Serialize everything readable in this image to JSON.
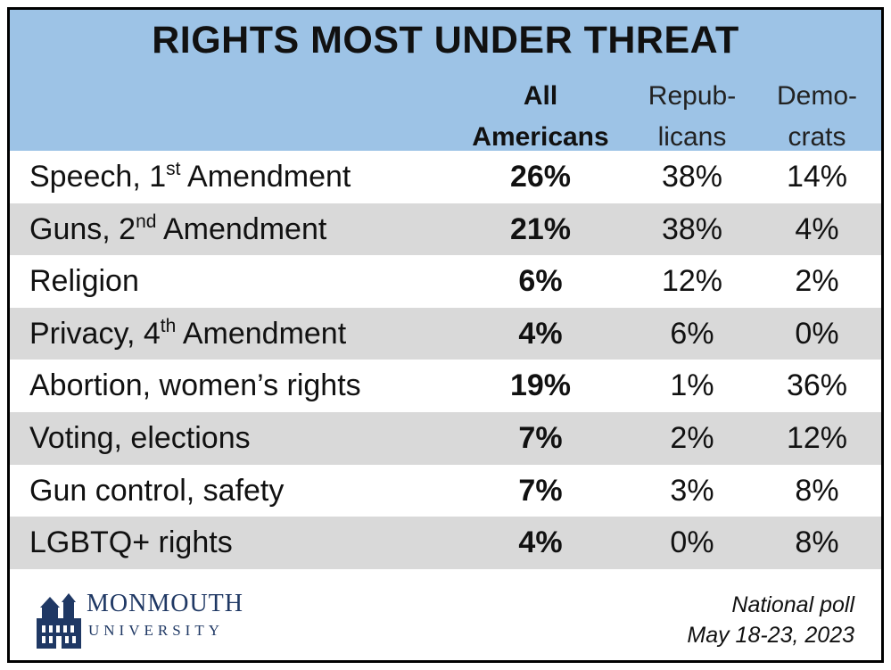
{
  "chart_data": {
    "type": "table",
    "title": "RIGHTS MOST UNDER THREAT",
    "columns": [
      {
        "line1": "All",
        "line2": "Americans"
      },
      {
        "line1": "Repub-",
        "line2": "licans"
      },
      {
        "line1": "Demo-",
        "line2": "crats"
      }
    ],
    "rows": [
      {
        "label_main": "Speech, 1",
        "label_sup": "st",
        "label_rest": " Amendment",
        "all": "26%",
        "rep": "38%",
        "dem": "14%"
      },
      {
        "label_main": "Guns, 2",
        "label_sup": "nd",
        "label_rest": " Amendment",
        "all": "21%",
        "rep": "38%",
        "dem": "4%"
      },
      {
        "label_main": "Religion",
        "label_sup": "",
        "label_rest": "",
        "all": "6%",
        "rep": "12%",
        "dem": "2%"
      },
      {
        "label_main": "Privacy, 4",
        "label_sup": "th",
        "label_rest": " Amendment",
        "all": "4%",
        "rep": "6%",
        "dem": "0%"
      },
      {
        "label_main": "Abortion, women’s rights",
        "label_sup": "",
        "label_rest": "",
        "all": "19%",
        "rep": "1%",
        "dem": "36%"
      },
      {
        "label_main": "Voting, elections",
        "label_sup": "",
        "label_rest": "",
        "all": "7%",
        "rep": "2%",
        "dem": "12%"
      },
      {
        "label_main": "Gun control, safety",
        "label_sup": "",
        "label_rest": "",
        "all": "7%",
        "rep": "3%",
        "dem": "8%"
      },
      {
        "label_main": "LGBTQ+ rights",
        "label_sup": "",
        "label_rest": "",
        "all": "4%",
        "rep": "0%",
        "dem": "8%"
      }
    ]
  },
  "logo": {
    "name": "MONMOUTH",
    "sub": "UNIVERSITY",
    "icon": "building-icon"
  },
  "poll": {
    "line1": "National poll",
    "line2": "May 18-23, 2023"
  },
  "colors": {
    "header": "#9dc3e6",
    "shaded_row": "#d9d9d9",
    "logo": "#1f3864"
  }
}
